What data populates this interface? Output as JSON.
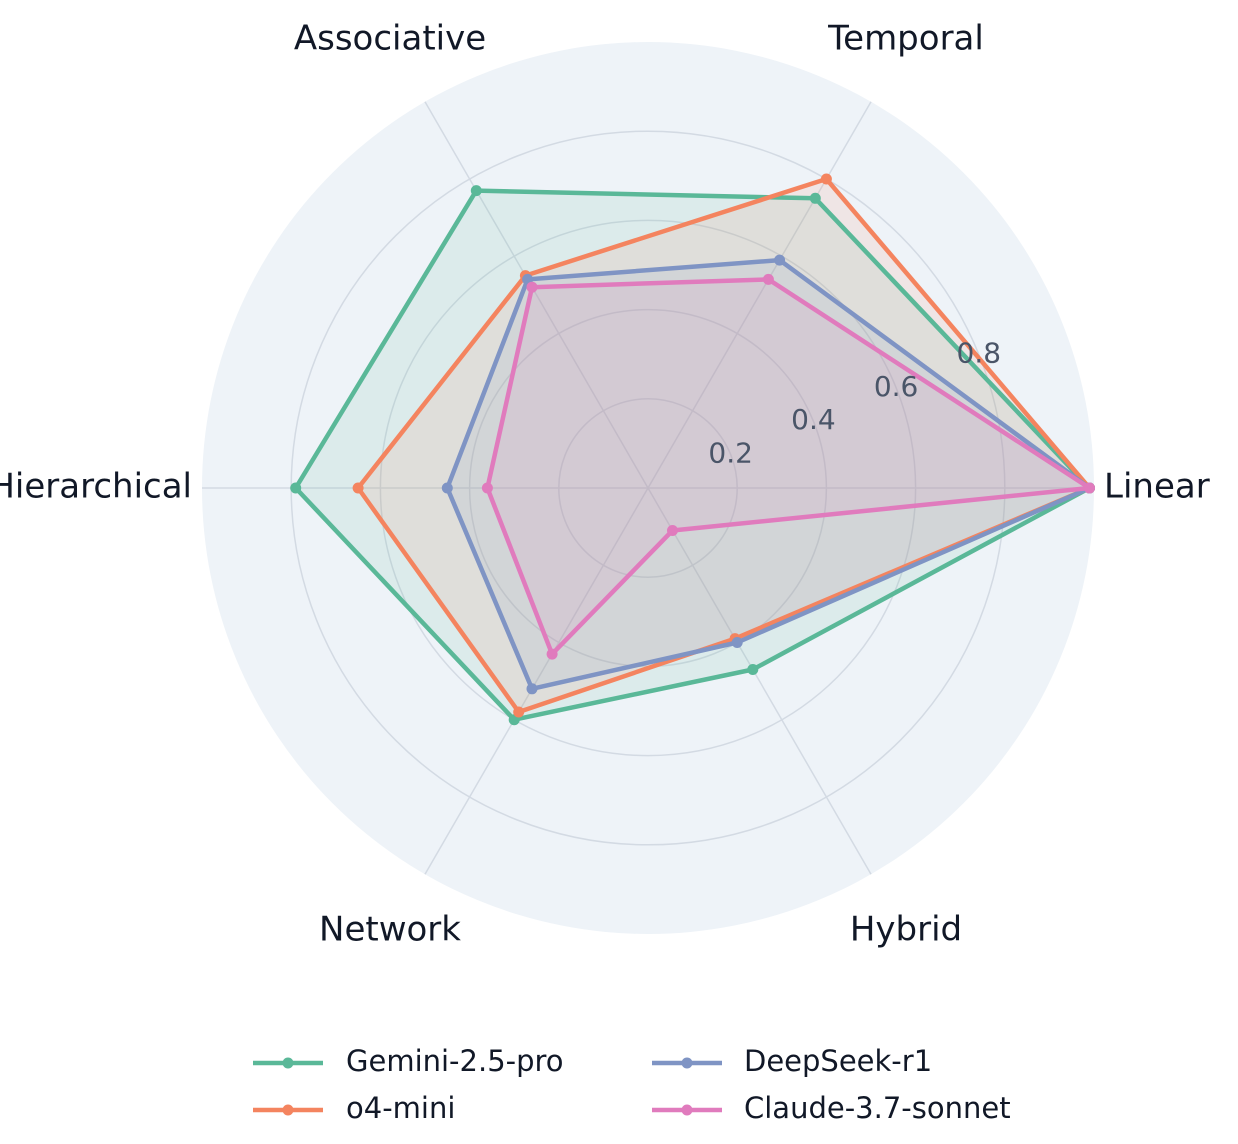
{
  "chart_data": {
    "type": "radar",
    "axes": [
      "Linear",
      "Temporal",
      "Associative",
      "Hierarchical",
      "Network",
      "Hybrid"
    ],
    "rlim": [
      0,
      1
    ],
    "r_ticks": [
      "0.2",
      "0.4",
      "0.6",
      "0.8"
    ],
    "r_tick_values": [
      0.2,
      0.4,
      0.6,
      0.8
    ],
    "grid": true,
    "legend_placement": "bottom-center",
    "series": [
      {
        "name": "Gemini-2.5-pro",
        "color": "#5ab898",
        "values": [
          0.99,
          0.75,
          0.77,
          0.79,
          0.6,
          0.47
        ]
      },
      {
        "name": "o4-mini",
        "color": "#f4845f",
        "values": [
          0.99,
          0.8,
          0.55,
          0.65,
          0.58,
          0.39
        ]
      },
      {
        "name": "DeepSeek-r1",
        "color": "#7f94c4",
        "values": [
          0.99,
          0.59,
          0.54,
          0.45,
          0.52,
          0.4
        ]
      },
      {
        "name": "Claude-3.7-sonnet",
        "color": "#e07bbd",
        "values": [
          0.99,
          0.54,
          0.52,
          0.36,
          0.43,
          0.11
        ]
      }
    ]
  }
}
